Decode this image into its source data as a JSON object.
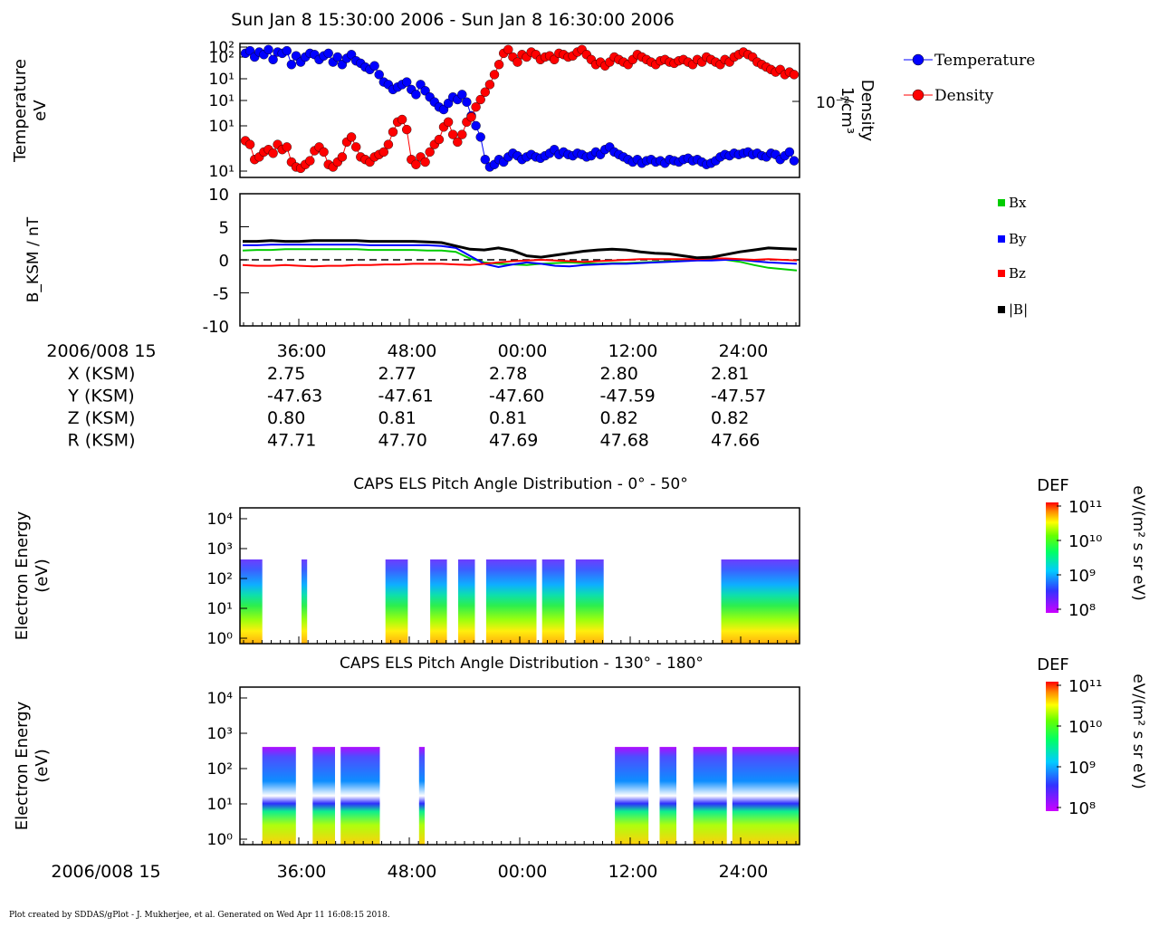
{
  "title": "Sun Jan 8 15:30:00 2006 - Sun Jan 8 16:30:00 2006",
  "footer": "Plot created by SDDAS/gPlot - J. Mukherjee, et al.  Generated on Wed Apr 11 16:08:15 2018.",
  "colors": {
    "temperature": "#0000ff",
    "density": "#ff0000",
    "bx": "#00cc00",
    "by": "#0000ff",
    "bz": "#ff0000",
    "btot": "#000000"
  },
  "time_ticks": [
    "36:00",
    "48:00",
    "00:00",
    "12:00",
    "24:00"
  ],
  "ephemeris": {
    "date_label": "2006/008 15",
    "rows": [
      {
        "label": "X (KSM)",
        "values": [
          "2.75",
          "2.77",
          "2.78",
          "2.80",
          "2.81"
        ]
      },
      {
        "label": "Y (KSM)",
        "values": [
          "-47.63",
          "-47.61",
          "-47.60",
          "-47.59",
          "-47.57"
        ]
      },
      {
        "label": "Z (KSM)",
        "values": [
          "0.80",
          "0.81",
          "0.81",
          "0.82",
          "0.82"
        ]
      },
      {
        "label": "R (KSM)",
        "values": [
          "47.71",
          "47.70",
          "47.69",
          "47.68",
          "47.66"
        ]
      }
    ]
  },
  "bottom_date_label": "2006/008 15",
  "chart_data": [
    {
      "type": "line",
      "ylabel": [
        "Temperature",
        "eV"
      ],
      "y2label": [
        "Density",
        "1/cm³"
      ],
      "y_tick_labels": [
        "10²",
        "10²",
        "10¹",
        "10¹",
        "10¹",
        "10¹"
      ],
      "y2_tick_labels": [
        "10⁻²"
      ],
      "legend": [
        "Temperature",
        "Density"
      ],
      "series": [
        {
          "name": "Temperature",
          "values": [
            0.95,
            0.97,
            0.92,
            0.96,
            0.94,
            0.98,
            0.9,
            0.96,
            0.95,
            0.97,
            0.86,
            0.93,
            0.88,
            0.92,
            0.95,
            0.94,
            0.9,
            0.93,
            0.95,
            0.88,
            0.92,
            0.86,
            0.91,
            0.94,
            0.89,
            0.87,
            0.84,
            0.82,
            0.85,
            0.78,
            0.72,
            0.7,
            0.66,
            0.68,
            0.7,
            0.72,
            0.66,
            0.62,
            0.7,
            0.65,
            0.6,
            0.56,
            0.52,
            0.5,
            0.55,
            0.6,
            0.58,
            0.62,
            0.56,
            0.45,
            0.37,
            0.28,
            0.1,
            0.04,
            0.06,
            0.1,
            0.08,
            0.12,
            0.15,
            0.13,
            0.1,
            0.12,
            0.14,
            0.12,
            0.11,
            0.13,
            0.15,
            0.18,
            0.14,
            0.16,
            0.14,
            0.13,
            0.15,
            0.14,
            0.12,
            0.13,
            0.16,
            0.14,
            0.18,
            0.2,
            0.16,
            0.14,
            0.12,
            0.1,
            0.08,
            0.1,
            0.07,
            0.09,
            0.1,
            0.08,
            0.09,
            0.07,
            0.1,
            0.09,
            0.08,
            0.1,
            0.11,
            0.09,
            0.1,
            0.08,
            0.06,
            0.07,
            0.09,
            0.12,
            0.14,
            0.13,
            0.15,
            0.14,
            0.15,
            0.16,
            0.14,
            0.15,
            0.13,
            0.12,
            0.15,
            0.14,
            0.1,
            0.13,
            0.16,
            0.09
          ]
        },
        {
          "name": "Density",
          "values": [
            0.25,
            0.22,
            0.1,
            0.12,
            0.16,
            0.18,
            0.15,
            0.22,
            0.18,
            0.2,
            0.08,
            0.04,
            0.03,
            0.06,
            0.09,
            0.17,
            0.2,
            0.16,
            0.06,
            0.04,
            0.08,
            0.12,
            0.24,
            0.28,
            0.2,
            0.12,
            0.1,
            0.08,
            0.12,
            0.14,
            0.16,
            0.22,
            0.32,
            0.4,
            0.42,
            0.34,
            0.1,
            0.06,
            0.12,
            0.08,
            0.16,
            0.22,
            0.26,
            0.36,
            0.4,
            0.3,
            0.24,
            0.3,
            0.4,
            0.44,
            0.52,
            0.58,
            0.64,
            0.7,
            0.78,
            0.86,
            0.95,
            0.98,
            0.92,
            0.88,
            0.94,
            0.92,
            0.96,
            0.94,
            0.9,
            0.92,
            0.93,
            0.9,
            0.95,
            0.94,
            0.92,
            0.93,
            0.96,
            0.98,
            0.94,
            0.9,
            0.86,
            0.88,
            0.85,
            0.88,
            0.92,
            0.9,
            0.88,
            0.86,
            0.9,
            0.94,
            0.92,
            0.9,
            0.88,
            0.86,
            0.89,
            0.9,
            0.88,
            0.87,
            0.89,
            0.9,
            0.88,
            0.86,
            0.9,
            0.88,
            0.92,
            0.9,
            0.88,
            0.86,
            0.9,
            0.88,
            0.92,
            0.94,
            0.96,
            0.94,
            0.92,
            0.88,
            0.86,
            0.84,
            0.82,
            0.8,
            0.82,
            0.78,
            0.8,
            0.78
          ]
        }
      ]
    },
    {
      "type": "line",
      "ylabel": "B_KSM / nT",
      "ylim": [
        -10,
        10
      ],
      "y_ticks": [
        10,
        5,
        0,
        -5,
        -10
      ],
      "legend": [
        "Bx",
        "By",
        "Bz",
        "|B|"
      ],
      "series": [
        {
          "name": "Bx",
          "values": [
            1.4,
            1.5,
            1.5,
            1.6,
            1.6,
            1.6,
            1.6,
            1.6,
            1.6,
            1.5,
            1.5,
            1.5,
            1.5,
            1.4,
            1.4,
            1.2,
            0.2,
            -0.4,
            -0.6,
            -0.7,
            -0.8,
            -0.6,
            -0.5,
            -0.4,
            -0.5,
            -0.6,
            -0.5,
            -0.5,
            -0.4,
            -0.3,
            -0.2,
            -0.1,
            0.0,
            0.0,
            0.0,
            -0.3,
            -0.8,
            -1.2,
            -1.4,
            -1.6
          ]
        },
        {
          "name": "By",
          "values": [
            2.2,
            2.2,
            2.3,
            2.3,
            2.3,
            2.3,
            2.3,
            2.3,
            2.3,
            2.2,
            2.2,
            2.2,
            2.2,
            2.2,
            2.1,
            1.8,
            0.6,
            -0.6,
            -1.1,
            -0.7,
            -0.4,
            -0.6,
            -0.9,
            -1.0,
            -0.8,
            -0.7,
            -0.6,
            -0.6,
            -0.5,
            -0.4,
            -0.3,
            -0.2,
            -0.1,
            -0.1,
            0.0,
            0.0,
            -0.2,
            -0.4,
            -0.5,
            -0.6
          ]
        },
        {
          "name": "Bz",
          "values": [
            -0.8,
            -0.9,
            -0.9,
            -0.8,
            -0.9,
            -1.0,
            -0.9,
            -0.9,
            -0.8,
            -0.8,
            -0.7,
            -0.7,
            -0.6,
            -0.6,
            -0.6,
            -0.7,
            -0.8,
            -0.6,
            -0.4,
            -0.2,
            -0.1,
            0.0,
            -0.1,
            -0.2,
            -0.3,
            -0.2,
            -0.1,
            0.0,
            0.1,
            0.1,
            0.1,
            0.1,
            0.1,
            0.2,
            0.2,
            0.1,
            0.0,
            0.1,
            0.0,
            -0.1
          ]
        },
        {
          "name": "|B|",
          "values": [
            2.8,
            2.8,
            2.9,
            2.8,
            2.8,
            2.9,
            2.9,
            2.9,
            2.9,
            2.8,
            2.8,
            2.8,
            2.8,
            2.7,
            2.6,
            2.1,
            1.6,
            1.5,
            1.8,
            1.4,
            0.6,
            0.4,
            0.7,
            1.0,
            1.3,
            1.5,
            1.6,
            1.5,
            1.2,
            1.0,
            0.9,
            0.6,
            0.3,
            0.4,
            0.8,
            1.2,
            1.5,
            1.8,
            1.7,
            1.6
          ]
        }
      ]
    },
    {
      "type": "heatmap",
      "title": "CAPS ELS Pitch Angle Distribution - 0° - 50°",
      "ylabel": [
        "Electron Energy",
        "(eV)"
      ],
      "y_tick_labels": [
        "10⁴",
        "10³",
        "10²",
        "10¹",
        "10⁰"
      ],
      "colorbar": {
        "label": "DEF",
        "units": "eV/(m² s sr eV)",
        "ticks": [
          "10¹¹",
          "10¹⁰",
          "10⁹",
          "10⁸"
        ]
      },
      "active_intervals_fraction": [
        [
          0.0,
          0.04
        ],
        [
          0.11,
          0.12
        ],
        [
          0.26,
          0.3
        ],
        [
          0.34,
          0.37
        ],
        [
          0.39,
          0.42
        ],
        [
          0.44,
          0.53
        ],
        [
          0.54,
          0.58
        ],
        [
          0.6,
          0.65
        ],
        [
          0.86,
          1.0
        ]
      ]
    },
    {
      "type": "heatmap",
      "title": "CAPS ELS Pitch Angle Distribution - 130° - 180°",
      "ylabel": [
        "Electron Energy",
        "(eV)"
      ],
      "y_tick_labels": [
        "10⁴",
        "10³",
        "10²",
        "10¹",
        "10⁰"
      ],
      "colorbar": {
        "label": "DEF",
        "units": "eV/(m² s sr eV)",
        "ticks": [
          "10¹¹",
          "10¹⁰",
          "10⁹",
          "10⁸"
        ]
      },
      "active_intervals_fraction": [
        [
          0.04,
          0.1
        ],
        [
          0.13,
          0.17
        ],
        [
          0.18,
          0.25
        ],
        [
          0.32,
          0.33
        ],
        [
          0.67,
          0.73
        ],
        [
          0.75,
          0.78
        ],
        [
          0.81,
          0.87
        ],
        [
          0.88,
          1.0
        ]
      ]
    }
  ]
}
